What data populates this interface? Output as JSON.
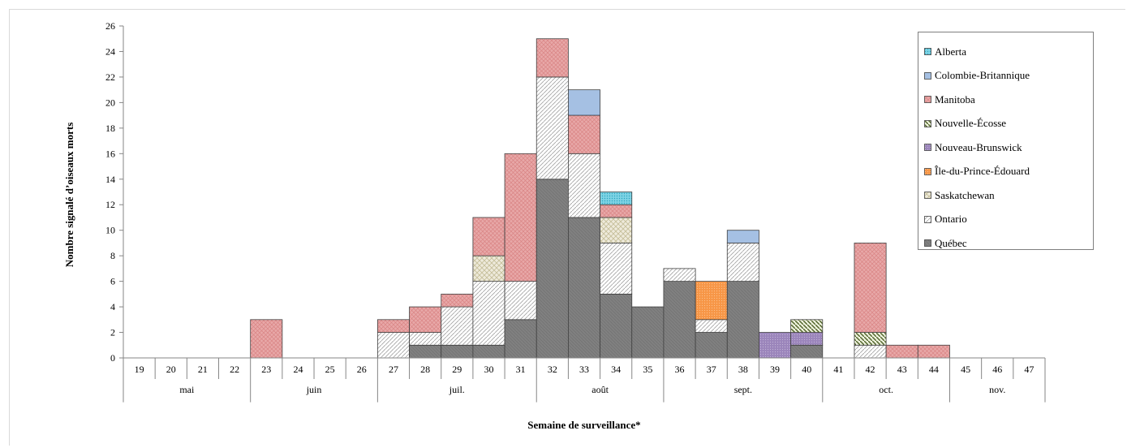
{
  "chart_data": {
    "type": "bar",
    "stacked": true,
    "title": "",
    "xlabel": "Semaine de surveillance*",
    "ylabel": "Nombre signalé d’oiseaux morts",
    "ylim": [
      0,
      26
    ],
    "yticks": [
      0,
      2,
      4,
      6,
      8,
      10,
      12,
      14,
      16,
      18,
      20,
      22,
      24,
      26
    ],
    "grid": false,
    "legend_position": "top-right",
    "categories": [
      "19",
      "20",
      "21",
      "22",
      "23",
      "24",
      "25",
      "26",
      "27",
      "28",
      "29",
      "30",
      "31",
      "32",
      "33",
      "34",
      "35",
      "36",
      "37",
      "38",
      "39",
      "40",
      "41",
      "42",
      "43",
      "44",
      "45",
      "46",
      "47"
    ],
    "months": [
      {
        "label": "mai",
        "from": "19",
        "to": "22"
      },
      {
        "label": "juin",
        "from": "23",
        "to": "26"
      },
      {
        "label": "juil.",
        "from": "27",
        "to": "31"
      },
      {
        "label": "août",
        "from": "32",
        "to": "35"
      },
      {
        "label": "sept.",
        "from": "36",
        "to": "40"
      },
      {
        "label": "oct.",
        "from": "41",
        "to": "44"
      },
      {
        "label": "nov.",
        "from": "45",
        "to": "47"
      }
    ],
    "series": [
      {
        "name": "Québec",
        "color": "#7f7f7f",
        "pattern": "solid",
        "values": [
          0,
          0,
          0,
          0,
          0,
          0,
          0,
          0,
          0,
          1,
          1,
          1,
          3,
          14,
          11,
          5,
          4,
          6,
          2,
          6,
          0,
          1,
          0,
          0,
          0,
          0,
          0,
          0,
          0
        ]
      },
      {
        "name": "Ontario",
        "color": "#bfbfbf",
        "pattern": "diagonal-light",
        "values": [
          0,
          0,
          0,
          0,
          0,
          0,
          0,
          0,
          2,
          1,
          3,
          5,
          3,
          8,
          5,
          4,
          0,
          1,
          1,
          3,
          0,
          0,
          0,
          1,
          0,
          0,
          0,
          0,
          0
        ]
      },
      {
        "name": "Saskatchewan",
        "color": "#c4bd97",
        "pattern": "crosshatch",
        "values": [
          0,
          0,
          0,
          0,
          0,
          0,
          0,
          0,
          0,
          0,
          0,
          2,
          0,
          0,
          0,
          2,
          0,
          0,
          0,
          0,
          0,
          0,
          0,
          0,
          0,
          0,
          0,
          0,
          0
        ]
      },
      {
        "name": "Île-du-Prince-Édouard",
        "color": "#f79646",
        "pattern": "dots",
        "values": [
          0,
          0,
          0,
          0,
          0,
          0,
          0,
          0,
          0,
          0,
          0,
          0,
          0,
          0,
          0,
          0,
          0,
          0,
          3,
          0,
          0,
          0,
          0,
          0,
          0,
          0,
          0,
          0,
          0
        ]
      },
      {
        "name": "Nouveau-Brunswick",
        "color": "#8064a2",
        "pattern": "dots",
        "values": [
          0,
          0,
          0,
          0,
          0,
          0,
          0,
          0,
          0,
          0,
          0,
          0,
          0,
          0,
          0,
          0,
          0,
          0,
          0,
          0,
          2,
          1,
          0,
          0,
          0,
          0,
          0,
          0,
          0
        ]
      },
      {
        "name": "Nouvelle-Écosse",
        "color": "#4f6228",
        "pattern": "diagonal-dark",
        "values": [
          0,
          0,
          0,
          0,
          0,
          0,
          0,
          0,
          0,
          0,
          0,
          0,
          0,
          0,
          0,
          0,
          0,
          0,
          0,
          0,
          0,
          1,
          0,
          1,
          0,
          0,
          0,
          0,
          0
        ]
      },
      {
        "name": "Manitoba",
        "color": "#e6b9b8",
        "pattern": "crosshatch-red",
        "values": [
          0,
          0,
          0,
          0,
          3,
          0,
          0,
          0,
          1,
          2,
          1,
          3,
          10,
          3,
          3,
          1,
          0,
          0,
          0,
          0,
          0,
          0,
          0,
          7,
          1,
          1,
          0,
          0,
          0
        ]
      },
      {
        "name": "Colombie-Britannique",
        "color": "#8db3e2",
        "pattern": "horizontal",
        "values": [
          0,
          0,
          0,
          0,
          0,
          0,
          0,
          0,
          0,
          0,
          0,
          0,
          0,
          0,
          2,
          0,
          0,
          0,
          0,
          1,
          0,
          0,
          0,
          0,
          0,
          0,
          0,
          0,
          0
        ]
      },
      {
        "name": "Alberta",
        "color": "#31b6d0",
        "pattern": "dots-cyan",
        "values": [
          0,
          0,
          0,
          0,
          0,
          0,
          0,
          0,
          0,
          0,
          0,
          0,
          0,
          0,
          0,
          1,
          0,
          0,
          0,
          0,
          0,
          0,
          0,
          0,
          0,
          0,
          0,
          0,
          0
        ]
      }
    ],
    "legend_order": [
      "Alberta",
      "Colombie-Britannique",
      "Manitoba",
      "Nouvelle-Écosse",
      "Nouveau-Brunswick",
      "Île-du-Prince-Édouard",
      "Saskatchewan",
      "Ontario",
      "Québec"
    ]
  }
}
